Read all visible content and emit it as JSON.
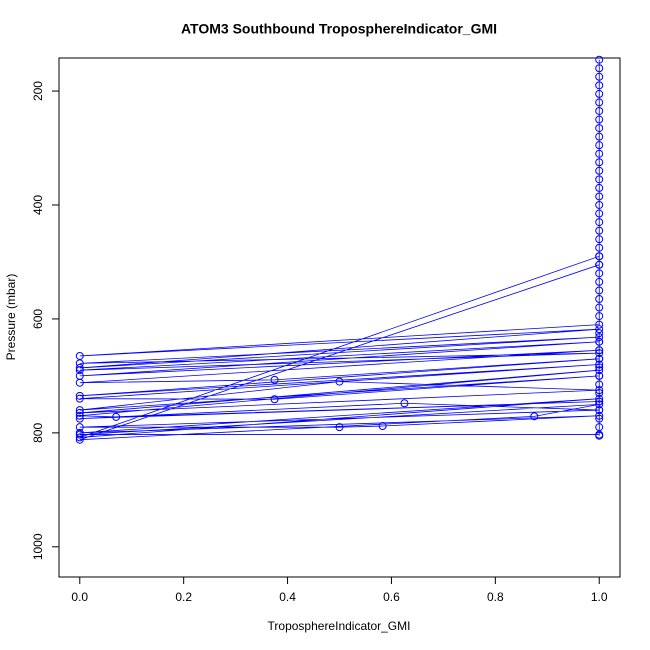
{
  "chart_data": {
    "type": "line",
    "title": "ATOM3 Southbound TroposphereIndicator_GMI",
    "x_label": "TroposphereIndicator_GMI",
    "y_label": "Pressure (mbar)",
    "color": "#0000ff",
    "xlim": [
      -0.04,
      1.04
    ],
    "ylim": [
      1053,
      142
    ],
    "xticks": [
      {
        "value": 0,
        "label": "0.0"
      },
      {
        "value": 0.2,
        "label": "0.2"
      },
      {
        "value": 0.4,
        "label": "0.4"
      },
      {
        "value": 0.6,
        "label": "0.6"
      },
      {
        "value": 0.8,
        "label": "0.8"
      },
      {
        "value": 1,
        "label": "1.0"
      }
    ],
    "yticks": [
      200,
      400,
      600,
      800,
      1000
    ],
    "x": [
      1,
      1,
      1,
      1,
      1,
      1,
      1,
      1,
      1,
      1,
      1,
      1,
      1,
      1,
      1,
      1,
      1,
      1,
      1,
      1,
      1,
      1,
      1,
      1,
      1,
      1,
      1,
      1,
      1,
      1,
      1,
      1,
      0,
      1,
      0,
      1,
      0,
      1,
      0,
      1,
      0,
      1,
      0,
      0.375,
      1,
      0,
      1,
      0,
      0.375,
      1,
      0,
      0.5,
      1,
      0,
      1,
      0,
      0.07,
      1,
      0,
      0.625,
      1,
      0,
      0.5,
      0.583,
      1,
      0,
      1,
      0,
      1,
      1,
      0,
      0.875,
      1,
      0,
      1,
      1,
      1,
      1,
      1,
      1,
      1,
      1,
      1,
      1,
      1,
      1,
      1,
      1
    ],
    "y": [
      145,
      160,
      175,
      190,
      205,
      220,
      235,
      250,
      265,
      280,
      295,
      310,
      325,
      340,
      355,
      370,
      385,
      400,
      415,
      430,
      445,
      460,
      475,
      490,
      505,
      520,
      535,
      550,
      565,
      580,
      595,
      610,
      665,
      618,
      686,
      632,
      678,
      660,
      690,
      640,
      700,
      655,
      712,
      707,
      670,
      735,
      680,
      740,
      741,
      700,
      760,
      710,
      725,
      765,
      690,
      770,
      772,
      745,
      775,
      748,
      760,
      790,
      790,
      788,
      770,
      800,
      740,
      808,
      490,
      505,
      812,
      771,
      750,
      803,
      803,
      625,
      640,
      655,
      670,
      685,
      700,
      715,
      730,
      745,
      760,
      775,
      790,
      805
    ]
  }
}
